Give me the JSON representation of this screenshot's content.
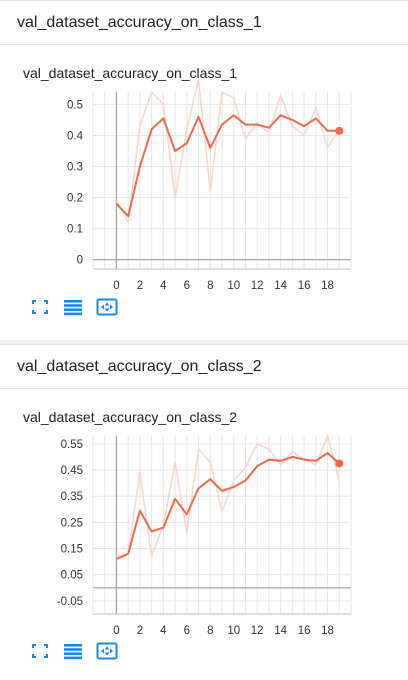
{
  "colors": {
    "line": "#f06a4b",
    "raw": "#fbd4cb",
    "grid": "#e6e6e6",
    "axis": "#9e9e9e",
    "icon": "#1e88e5"
  },
  "icons": [
    "fullscreen-icon",
    "data-table-icon",
    "fit-domain-icon"
  ],
  "cards": [
    {
      "header": "val_dataset_accuracy_on_class_1",
      "title": "val_dataset_accuracy_on_class_1"
    },
    {
      "header": "val_dataset_accuracy_on_class_2",
      "title": "val_dataset_accuracy_on_class_2"
    }
  ],
  "chart_data": [
    {
      "type": "line",
      "title": "val_dataset_accuracy_on_class_1",
      "x_ticks": [
        "0",
        "2",
        "4",
        "6",
        "8",
        "10",
        "12",
        "14",
        "16",
        "18"
      ],
      "y_ticks": [
        "0",
        "0.1",
        "0.2",
        "0.3",
        "0.4",
        "0.5"
      ],
      "xlim": [
        -2,
        20
      ],
      "ylim": [
        -0.03,
        0.54
      ],
      "grid": true,
      "series": [
        {
          "values": [
            [
              0,
              0.18
            ],
            [
              1,
              0.14
            ],
            [
              2,
              0.3
            ],
            [
              3,
              0.42
            ],
            [
              4,
              0.455
            ],
            [
              5,
              0.35
            ],
            [
              6,
              0.375
            ],
            [
              7,
              0.46
            ],
            [
              8,
              0.36
            ],
            [
              9,
              0.435
            ],
            [
              10,
              0.465
            ],
            [
              11,
              0.435
            ],
            [
              12,
              0.435
            ],
            [
              13,
              0.425
            ],
            [
              14,
              0.465
            ],
            [
              15,
              0.45
            ],
            [
              16,
              0.43
            ],
            [
              17,
              0.455
            ],
            [
              18,
              0.415
            ],
            [
              19,
              0.415
            ]
          ]
        },
        {
          "values": [
            [
              0,
              0.19
            ],
            [
              1,
              0.12
            ],
            [
              2,
              0.43
            ],
            [
              3,
              0.54
            ],
            [
              4,
              0.5
            ],
            [
              5,
              0.2
            ],
            [
              6,
              0.42
            ],
            [
              7,
              0.58
            ],
            [
              8,
              0.22
            ],
            [
              9,
              0.54
            ],
            [
              10,
              0.52
            ],
            [
              11,
              0.39
            ],
            [
              12,
              0.44
            ],
            [
              13,
              0.41
            ],
            [
              14,
              0.53
            ],
            [
              15,
              0.43
            ],
            [
              16,
              0.4
            ],
            [
              17,
              0.49
            ],
            [
              18,
              0.36
            ],
            [
              19,
              0.42
            ]
          ]
        }
      ]
    },
    {
      "type": "line",
      "title": "val_dataset_accuracy_on_class_2",
      "x_ticks": [
        "0",
        "2",
        "4",
        "6",
        "8",
        "10",
        "12",
        "14",
        "16",
        "18"
      ],
      "y_ticks": [
        "-0.05",
        "0.05",
        "0.15",
        "0.25",
        "0.35",
        "0.45",
        "0.55"
      ],
      "xlim": [
        -2,
        20
      ],
      "ylim": [
        -0.1,
        0.58
      ],
      "grid": true,
      "series": [
        {
          "values": [
            [
              0,
              0.11
            ],
            [
              1,
              0.13
            ],
            [
              2,
              0.295
            ],
            [
              3,
              0.215
            ],
            [
              4,
              0.23
            ],
            [
              5,
              0.34
            ],
            [
              6,
              0.28
            ],
            [
              7,
              0.38
            ],
            [
              8,
              0.415
            ],
            [
              9,
              0.37
            ],
            [
              10,
              0.385
            ],
            [
              11,
              0.41
            ],
            [
              12,
              0.465
            ],
            [
              13,
              0.49
            ],
            [
              14,
              0.485
            ],
            [
              15,
              0.5
            ],
            [
              16,
              0.49
            ],
            [
              17,
              0.485
            ],
            [
              18,
              0.515
            ],
            [
              19,
              0.475
            ]
          ]
        },
        {
          "values": [
            [
              0,
              0.12
            ],
            [
              1,
              0.13
            ],
            [
              2,
              0.44
            ],
            [
              3,
              0.12
            ],
            [
              4,
              0.24
            ],
            [
              5,
              0.48
            ],
            [
              6,
              0.21
            ],
            [
              7,
              0.53
            ],
            [
              8,
              0.48
            ],
            [
              9,
              0.29
            ],
            [
              10,
              0.41
            ],
            [
              11,
              0.46
            ],
            [
              12,
              0.55
            ],
            [
              13,
              0.53
            ],
            [
              14,
              0.47
            ],
            [
              15,
              0.52
            ],
            [
              16,
              0.49
            ],
            [
              17,
              0.47
            ],
            [
              18,
              0.58
            ],
            [
              19,
              0.41
            ]
          ]
        }
      ]
    }
  ]
}
